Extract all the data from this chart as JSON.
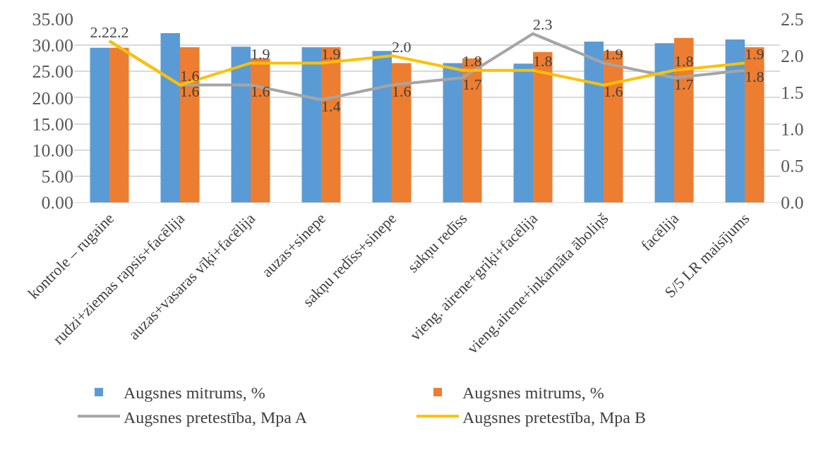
{
  "chart_data": {
    "type": "bar",
    "categories": [
      "kontrole – rugaine",
      "rudzi+ziemas rapsis+facēlija",
      "auzas+vasaras vīķi+facēlija",
      "auzas+sinepe",
      "sakņu redīss+sinepe",
      "sakņu redīss",
      "vieng. airene+griķi+facēlija",
      "vieng.airene+inkarnāta āboliņš",
      "facēlija",
      "S/5 LR maisījums"
    ],
    "series": [
      {
        "name": "Augsnes mitrums, %",
        "color": "#5b9bd5",
        "values": [
          29.5,
          32.3,
          29.7,
          29.6,
          28.9,
          26.6,
          26.5,
          30.7,
          30.4,
          31.1
        ]
      },
      {
        "name": "Augsnes mitrums, %",
        "color": "#ed7d31",
        "values": [
          29.5,
          29.6,
          27.5,
          29.6,
          26.6,
          27.5,
          28.7,
          28.9,
          31.4,
          29.6
        ]
      },
      {
        "name": "Augsnes pretestība, Mpa A",
        "type": "line",
        "axis": "y2",
        "color": "#a5a5a5",
        "values": [
          2.2,
          1.6,
          1.6,
          1.4,
          1.6,
          1.7,
          2.3,
          1.9,
          1.7,
          1.8
        ],
        "value_labels": [
          "2.2",
          "1.6",
          "1.6",
          "1.4",
          "1.6",
          "1.7",
          "2.3",
          "1.9",
          "1.7",
          "1.8"
        ]
      },
      {
        "name": "Augsnes pretestība, Mpa B",
        "type": "line",
        "axis": "y2",
        "color": "#ffc000",
        "values": [
          2.2,
          1.6,
          1.9,
          1.9,
          2.0,
          1.8,
          1.8,
          1.6,
          1.8,
          1.9
        ],
        "value_labels": [
          "2.2",
          "1.6",
          "1.9",
          "1.9",
          "2.0",
          "1.8",
          "1.8",
          "1.6",
          "1.8",
          "1.9"
        ]
      }
    ],
    "ylim": [
      0,
      35
    ],
    "yticks": [
      {
        "value": 0,
        "label": "0.00"
      },
      {
        "value": 5,
        "label": "5.00"
      },
      {
        "value": 10,
        "label": "10.00"
      },
      {
        "value": 15,
        "label": "15.00"
      },
      {
        "value": 20,
        "label": "20.00"
      },
      {
        "value": 25,
        "label": "25.00"
      },
      {
        "value": 30,
        "label": "30.00"
      },
      {
        "value": 35,
        "label": "35.00"
      }
    ],
    "y2lim": [
      0,
      2.5
    ],
    "y2ticks": [
      {
        "value": 0,
        "label": "0.0"
      },
      0.5,
      {
        "value": 1,
        "label": "1.0"
      },
      1.5,
      {
        "value": 2,
        "label": "2.0"
      },
      2.5
    ],
    "grid": "y",
    "legend": "bottom",
    "marker": "none",
    "line_style": "solid"
  }
}
